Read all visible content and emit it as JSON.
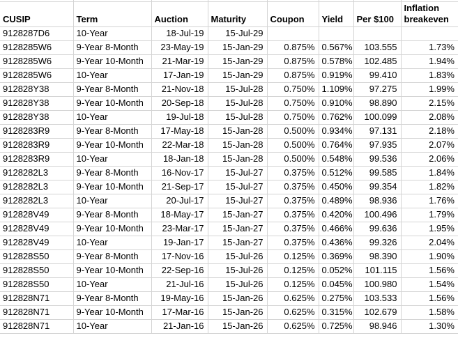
{
  "app": {
    "view": "spreadsheet-grid"
  },
  "colors": {
    "gridline": "#d4d4d4",
    "text": "#000000",
    "background": "#ffffff"
  },
  "table": {
    "columns": [
      {
        "key": "cusip",
        "label": "CUSIP",
        "align": "left"
      },
      {
        "key": "term",
        "label": "Term",
        "align": "left"
      },
      {
        "key": "auction",
        "label": "Auction",
        "align": "right"
      },
      {
        "key": "maturity",
        "label": "Maturity",
        "align": "right"
      },
      {
        "key": "coupon",
        "label": "Coupon",
        "align": "right"
      },
      {
        "key": "yield",
        "label": "Yield",
        "align": "right"
      },
      {
        "key": "per100",
        "label": "Per $100",
        "align": "right"
      },
      {
        "key": "breakeven",
        "label": "Inflation breakeven",
        "align": "right"
      }
    ],
    "rows": [
      {
        "cusip": "9128287D6",
        "term": "10-Year",
        "auction": "18-Jul-19",
        "maturity": "15-Jul-29",
        "coupon": "",
        "yield": "",
        "per100": "",
        "breakeven": ""
      },
      {
        "cusip": "9128285W6",
        "term": "9-Year 8-Month",
        "auction": "23-May-19",
        "maturity": "15-Jan-29",
        "coupon": "0.875%",
        "yield": "0.567%",
        "per100": "103.555",
        "breakeven": "1.73%"
      },
      {
        "cusip": "9128285W6",
        "term": "9-Year 10-Month",
        "auction": "21-Mar-19",
        "maturity": "15-Jan-29",
        "coupon": "0.875%",
        "yield": "0.578%",
        "per100": "102.485",
        "breakeven": "1.94%"
      },
      {
        "cusip": "9128285W6",
        "term": "10-Year",
        "auction": "17-Jan-19",
        "maturity": "15-Jan-29",
        "coupon": "0.875%",
        "yield": "0.919%",
        "per100": "99.410",
        "breakeven": "1.83%"
      },
      {
        "cusip": "912828Y38",
        "term": "9-Year 8-Month",
        "auction": "21-Nov-18",
        "maturity": "15-Jul-28",
        "coupon": "0.750%",
        "yield": "1.109%",
        "per100": "97.275",
        "breakeven": "1.99%"
      },
      {
        "cusip": "912828Y38",
        "term": "9-Year 10-Month",
        "auction": "20-Sep-18",
        "maturity": "15-Jul-28",
        "coupon": "0.750%",
        "yield": "0.910%",
        "per100": "98.890",
        "breakeven": "2.15%"
      },
      {
        "cusip": "912828Y38",
        "term": "10-Year",
        "auction": "19-Jul-18",
        "maturity": "15-Jul-28",
        "coupon": "0.750%",
        "yield": "0.762%",
        "per100": "100.099",
        "breakeven": "2.08%"
      },
      {
        "cusip": "9128283R9",
        "term": "9-Year 8-Month",
        "auction": "17-May-18",
        "maturity": "15-Jan-28",
        "coupon": "0.500%",
        "yield": "0.934%",
        "per100": "97.131",
        "breakeven": "2.18%"
      },
      {
        "cusip": "9128283R9",
        "term": "9-Year 10-Month",
        "auction": "22-Mar-18",
        "maturity": "15-Jan-28",
        "coupon": "0.500%",
        "yield": "0.764%",
        "per100": "97.935",
        "breakeven": "2.07%"
      },
      {
        "cusip": "9128283R9",
        "term": "10-Year",
        "auction": "18-Jan-18",
        "maturity": "15-Jan-28",
        "coupon": "0.500%",
        "yield": "0.548%",
        "per100": "99.536",
        "breakeven": "2.06%"
      },
      {
        "cusip": "9128282L3",
        "term": "9-Year 8-Month",
        "auction": "16-Nov-17",
        "maturity": "15-Jul-27",
        "coupon": "0.375%",
        "yield": "0.512%",
        "per100": "99.585",
        "breakeven": "1.84%"
      },
      {
        "cusip": "9128282L3",
        "term": "9-Year 10-Month",
        "auction": "21-Sep-17",
        "maturity": "15-Jul-27",
        "coupon": "0.375%",
        "yield": "0.450%",
        "per100": "99.354",
        "breakeven": "1.82%"
      },
      {
        "cusip": "9128282L3",
        "term": "10-Year",
        "auction": "20-Jul-17",
        "maturity": "15-Jul-27",
        "coupon": "0.375%",
        "yield": "0.489%",
        "per100": "98.936",
        "breakeven": "1.76%"
      },
      {
        "cusip": "912828V49",
        "term": "9-Year 8-Month",
        "auction": "18-May-17",
        "maturity": "15-Jan-27",
        "coupon": "0.375%",
        "yield": "0.420%",
        "per100": "100.496",
        "breakeven": "1.79%"
      },
      {
        "cusip": "912828V49",
        "term": "9-Year 10-Month",
        "auction": "23-Mar-17",
        "maturity": "15-Jan-27",
        "coupon": "0.375%",
        "yield": "0.466%",
        "per100": "99.636",
        "breakeven": "1.95%"
      },
      {
        "cusip": "912828V49",
        "term": "10-Year",
        "auction": "19-Jan-17",
        "maturity": "15-Jan-27",
        "coupon": "0.375%",
        "yield": "0.436%",
        "per100": "99.326",
        "breakeven": "2.04%"
      },
      {
        "cusip": "912828S50",
        "term": "9-Year 8-Month",
        "auction": "17-Nov-16",
        "maturity": "15-Jul-26",
        "coupon": "0.125%",
        "yield": "0.369%",
        "per100": "98.390",
        "breakeven": "1.90%"
      },
      {
        "cusip": "912828S50",
        "term": "9-Year 10-Month",
        "auction": "22-Sep-16",
        "maturity": "15-Jul-26",
        "coupon": "0.125%",
        "yield": "0.052%",
        "per100": "101.115",
        "breakeven": "1.56%"
      },
      {
        "cusip": "912828S50",
        "term": "10-Year",
        "auction": "21-Jul-16",
        "maturity": "15-Jul-26",
        "coupon": "0.125%",
        "yield": "0.045%",
        "per100": "100.980",
        "breakeven": "1.54%"
      },
      {
        "cusip": "912828N71",
        "term": "9-Year 8-Month",
        "auction": "19-May-16",
        "maturity": "15-Jan-26",
        "coupon": "0.625%",
        "yield": "0.275%",
        "per100": "103.533",
        "breakeven": "1.56%"
      },
      {
        "cusip": "912828N71",
        "term": "9-Year 10-Month",
        "auction": "17-Mar-16",
        "maturity": "15-Jan-26",
        "coupon": "0.625%",
        "yield": "0.315%",
        "per100": "102.679",
        "breakeven": "1.58%"
      },
      {
        "cusip": "912828N71",
        "term": "10-Year",
        "auction": "21-Jan-16",
        "maturity": "15-Jan-26",
        "coupon": "0.625%",
        "yield": "0.725%",
        "per100": "98.946",
        "breakeven": "1.30%"
      }
    ]
  }
}
